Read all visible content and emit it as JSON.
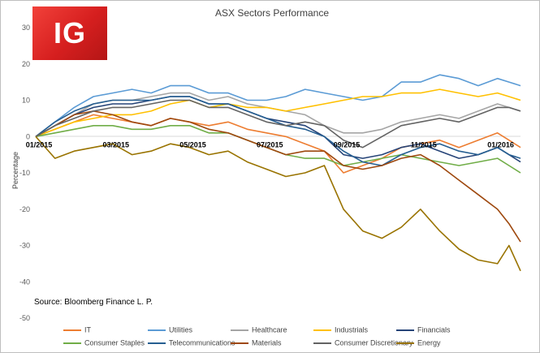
{
  "logo": {
    "text": "IG"
  },
  "source_note": "Source: Bloomberg Finance L. P.",
  "chart_data": {
    "type": "line",
    "title": "ASX Sectors Performance",
    "ylabel": "Percentage",
    "xlabel": "",
    "ylim": [
      -50,
      30
    ],
    "yticks": [
      "30",
      "20",
      "10",
      "0",
      "-10",
      "-20",
      "-30",
      "-40",
      "-50"
    ],
    "ytick_values": [
      30,
      20,
      10,
      0,
      -10,
      -20,
      -30,
      -40,
      -50
    ],
    "x_categories": [
      "01/2015",
      "03/2015",
      "05/2015",
      "07/2015",
      "09/2015",
      "11/2015",
      "01/2016"
    ],
    "x_tick_positions": [
      0,
      2,
      4,
      6,
      8,
      10,
      12
    ],
    "x_range": [
      0,
      12.6
    ],
    "grid": false,
    "legend_position": "bottom",
    "series": [
      {
        "name": "IT",
        "color": "#ed7d31",
        "x": [
          0,
          0.5,
          1,
          1.5,
          2,
          2.5,
          3,
          3.5,
          4,
          4.5,
          5,
          5.5,
          6,
          6.5,
          7,
          7.5,
          8,
          8.5,
          9,
          9.5,
          10,
          10.5,
          11,
          11.5,
          12,
          12.3,
          12.6
        ],
        "values": [
          0,
          2,
          4,
          6,
          5,
          4,
          3,
          5,
          4,
          3,
          4,
          2,
          1,
          0,
          -2,
          -4,
          -10,
          -8,
          -6,
          -3,
          -2,
          -1,
          -3,
          -1,
          1,
          -1,
          -3
        ]
      },
      {
        "name": "Utilities",
        "color": "#5b9bd5",
        "x": [
          0,
          0.5,
          1,
          1.5,
          2,
          2.5,
          3,
          3.5,
          4,
          4.5,
          5,
          5.5,
          6,
          6.5,
          7,
          7.5,
          8,
          8.5,
          9,
          9.5,
          10,
          10.5,
          11,
          11.5,
          12,
          12.3,
          12.6
        ],
        "values": [
          0,
          4,
          8,
          11,
          12,
          13,
          12,
          14,
          14,
          12,
          12,
          10,
          10,
          11,
          13,
          12,
          11,
          10,
          11,
          15,
          15,
          17,
          16,
          14,
          16,
          15,
          14
        ]
      },
      {
        "name": "Healthcare",
        "color": "#a5a5a5",
        "x": [
          0,
          0.5,
          1,
          1.5,
          2,
          2.5,
          3,
          3.5,
          4,
          4.5,
          5,
          5.5,
          6,
          6.5,
          7,
          7.5,
          8,
          8.5,
          9,
          9.5,
          10,
          10.5,
          11,
          11.5,
          12,
          12.3,
          12.6
        ],
        "values": [
          0,
          3,
          6,
          9,
          10,
          10,
          11,
          12,
          12,
          10,
          11,
          9,
          8,
          7,
          6,
          3,
          1,
          1,
          2,
          4,
          5,
          6,
          5,
          7,
          9,
          8,
          7
        ]
      },
      {
        "name": "Industrials",
        "color": "#ffc000",
        "x": [
          0,
          0.5,
          1,
          1.5,
          2,
          2.5,
          3,
          3.5,
          4,
          4.5,
          5,
          5.5,
          6,
          6.5,
          7,
          7.5,
          8,
          8.5,
          9,
          9.5,
          10,
          10.5,
          11,
          11.5,
          12,
          12.3,
          12.6
        ],
        "values": [
          0,
          2,
          4,
          5,
          6,
          6,
          7,
          9,
          10,
          8,
          9,
          8,
          8,
          7,
          8,
          9,
          10,
          11,
          11,
          12,
          12,
          13,
          12,
          11,
          12,
          11,
          10
        ]
      },
      {
        "name": "Financials",
        "color": "#264478",
        "x": [
          0,
          0.5,
          1,
          1.5,
          2,
          2.5,
          3,
          3.5,
          4,
          4.5,
          5,
          5.5,
          6,
          6.5,
          7,
          7.5,
          8,
          8.5,
          9,
          9.5,
          10,
          10.5,
          11,
          11.5,
          12,
          12.3,
          12.6
        ],
        "values": [
          0,
          3,
          6,
          8,
          9,
          9,
          10,
          11,
          11,
          9,
          9,
          7,
          5,
          4,
          3,
          0,
          -5,
          -6,
          -5,
          -3,
          -2,
          -4,
          -6,
          -5,
          -3,
          -5,
          -7
        ]
      },
      {
        "name": "Consumer Staples",
        "color": "#70ad47",
        "x": [
          0,
          0.5,
          1,
          1.5,
          2,
          2.5,
          3,
          3.5,
          4,
          4.5,
          5,
          5.5,
          6,
          6.5,
          7,
          7.5,
          8,
          8.5,
          9,
          9.5,
          10,
          10.5,
          11,
          11.5,
          12,
          12.3,
          12.6
        ],
        "values": [
          0,
          1,
          2,
          3,
          3,
          2,
          2,
          3,
          3,
          1,
          1,
          -1,
          -3,
          -5,
          -6,
          -6,
          -8,
          -7,
          -6,
          -5,
          -6,
          -7,
          -8,
          -7,
          -6,
          -8,
          -10
        ]
      },
      {
        "name": "Telecommunications",
        "color": "#255e91",
        "x": [
          0,
          0.5,
          1,
          1.5,
          2,
          2.5,
          3,
          3.5,
          4,
          4.5,
          5,
          5.5,
          6,
          6.5,
          7,
          7.5,
          8,
          8.5,
          9,
          9.5,
          10,
          10.5,
          11,
          11.5,
          12,
          12.3,
          12.6
        ],
        "values": [
          0,
          4,
          7,
          9,
          10,
          10,
          10,
          11,
          11,
          9,
          9,
          7,
          5,
          3,
          2,
          0,
          -4,
          -7,
          -8,
          -5,
          -3,
          -2,
          -4,
          -5,
          -3,
          -5,
          -6
        ]
      },
      {
        "name": "Materials",
        "color": "#9e480e",
        "x": [
          0,
          0.5,
          1,
          1.5,
          2,
          2.5,
          3,
          3.5,
          4,
          4.5,
          5,
          5.5,
          6,
          6.5,
          7,
          7.5,
          8,
          8.5,
          9,
          9.5,
          10,
          10.5,
          11,
          11.5,
          12,
          12.3,
          12.6
        ],
        "values": [
          0,
          3,
          6,
          7,
          6,
          4,
          3,
          5,
          4,
          2,
          1,
          -1,
          -3,
          -5,
          -4,
          -4,
          -8,
          -9,
          -8,
          -6,
          -5,
          -8,
          -12,
          -16,
          -20,
          -24,
          -29
        ]
      },
      {
        "name": "Consumer Discretionary",
        "color": "#636363",
        "x": [
          0,
          0.5,
          1,
          1.5,
          2,
          2.5,
          3,
          3.5,
          4,
          4.5,
          5,
          5.5,
          6,
          6.5,
          7,
          7.5,
          8,
          8.5,
          9,
          9.5,
          10,
          10.5,
          11,
          11.5,
          12,
          12.3,
          12.6
        ],
        "values": [
          0,
          3,
          5,
          7,
          8,
          8,
          9,
          10,
          10,
          8,
          8,
          6,
          4,
          3,
          4,
          3,
          -1,
          -3,
          0,
          3,
          4,
          5,
          4,
          6,
          8,
          8,
          7
        ]
      },
      {
        "name": "Energy",
        "color": "#997300",
        "x": [
          0,
          0.5,
          1,
          1.5,
          2,
          2.5,
          3,
          3.5,
          4,
          4.5,
          5,
          5.5,
          6,
          6.5,
          7,
          7.5,
          8,
          8.5,
          9,
          9.5,
          10,
          10.5,
          11,
          11.5,
          12,
          12.3,
          12.6
        ],
        "values": [
          0,
          -6,
          -4,
          -3,
          -2,
          -5,
          -4,
          -2,
          -3,
          -5,
          -4,
          -7,
          -9,
          -11,
          -10,
          -8,
          -20,
          -26,
          -28,
          -25,
          -20,
          -26,
          -31,
          -34,
          -35,
          -30,
          -37
        ]
      }
    ]
  }
}
